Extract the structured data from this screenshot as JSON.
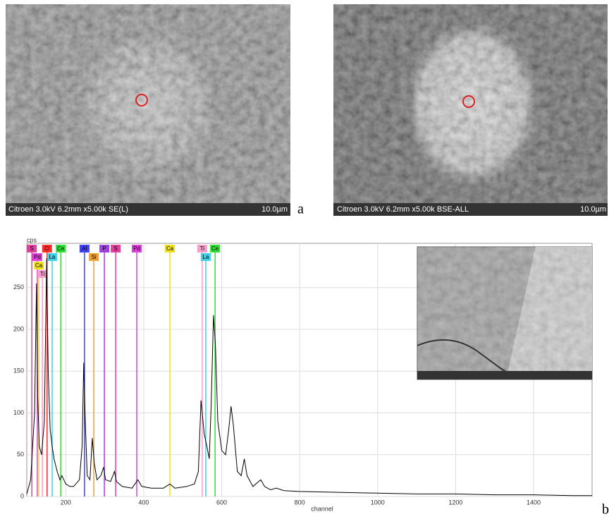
{
  "images": [
    {
      "caption": "Citroen 3.0kV 6.2mm x5.00k SE(L)",
      "scale": "10.0µm",
      "label": "a"
    },
    {
      "caption": "Citroen 3.0kV 6.2mm x5.00k BSE-ALL",
      "scale": "10.0µm",
      "label": ""
    }
  ],
  "chart_data": {
    "type": "line",
    "ylabel": "cps",
    "xlabel": "channel",
    "panel_label": "b",
    "color": "#000000",
    "xlim": [
      100,
      1550
    ],
    "ylim": [
      0,
      303
    ],
    "xticks": [
      200,
      400,
      600,
      800,
      1000,
      1200,
      1400
    ],
    "yticks": [
      0,
      50,
      100,
      150,
      200,
      250
    ],
    "grid": true,
    "x": [
      100,
      110,
      115,
      120,
      125,
      128,
      132,
      138,
      145,
      151,
      155,
      160,
      165,
      170,
      178,
      185,
      190,
      200,
      210,
      220,
      235,
      242,
      246,
      250,
      255,
      262,
      268,
      273,
      280,
      290,
      297,
      302,
      315,
      325,
      330,
      345,
      370,
      385,
      395,
      420,
      450,
      467,
      480,
      510,
      530,
      540,
      547,
      555,
      562,
      568,
      573,
      579,
      584,
      590,
      600,
      610,
      618,
      624,
      630,
      640,
      650,
      658,
      665,
      680,
      700,
      710,
      725,
      740,
      760,
      800,
      900,
      1000,
      1100,
      1200,
      1300,
      1400,
      1500,
      1550
    ],
    "values": [
      3,
      20,
      60,
      100,
      255,
      120,
      60,
      50,
      90,
      285,
      150,
      80,
      60,
      45,
      30,
      20,
      25,
      15,
      12,
      12,
      20,
      60,
      160,
      90,
      25,
      20,
      70,
      40,
      20,
      25,
      35,
      20,
      18,
      30,
      18,
      12,
      10,
      20,
      12,
      10,
      10,
      15,
      10,
      12,
      15,
      30,
      115,
      75,
      60,
      45,
      110,
      217,
      180,
      90,
      55,
      50,
      80,
      108,
      85,
      30,
      25,
      45,
      25,
      12,
      20,
      12,
      8,
      10,
      7,
      6,
      5,
      4,
      3,
      3,
      2,
      2,
      1,
      1
    ],
    "element_markers": [
      {
        "label": "S",
        "x": 113,
        "color": "#e0409c"
      },
      {
        "label": "Pd",
        "x": 127,
        "color": "#e040e0"
      },
      {
        "label": "Ca",
        "x": 131,
        "color": "#f0e020"
      },
      {
        "label": "Ti",
        "x": 140,
        "color": "#f4a0c8"
      },
      {
        "label": "Cl",
        "x": 152,
        "color": "#ff3030"
      },
      {
        "label": "La",
        "x": 165,
        "color": "#40d0e8"
      },
      {
        "label": "Ce",
        "x": 187,
        "color": "#30e030"
      },
      {
        "label": "Al",
        "x": 248,
        "color": "#4040ff"
      },
      {
        "label": "Si",
        "x": 272,
        "color": "#f0a030"
      },
      {
        "label": "P",
        "x": 299,
        "color": "#a040e0"
      },
      {
        "label": "S",
        "x": 328,
        "color": "#e0409c"
      },
      {
        "label": "Pd",
        "x": 382,
        "color": "#e040e0"
      },
      {
        "label": "Ca",
        "x": 467,
        "color": "#f0e020"
      },
      {
        "label": "Ti",
        "x": 550,
        "color": "#f4a0c8"
      },
      {
        "label": "La",
        "x": 559,
        "color": "#40d0e8"
      },
      {
        "label": "Ce",
        "x": 583,
        "color": "#30e030"
      }
    ]
  }
}
